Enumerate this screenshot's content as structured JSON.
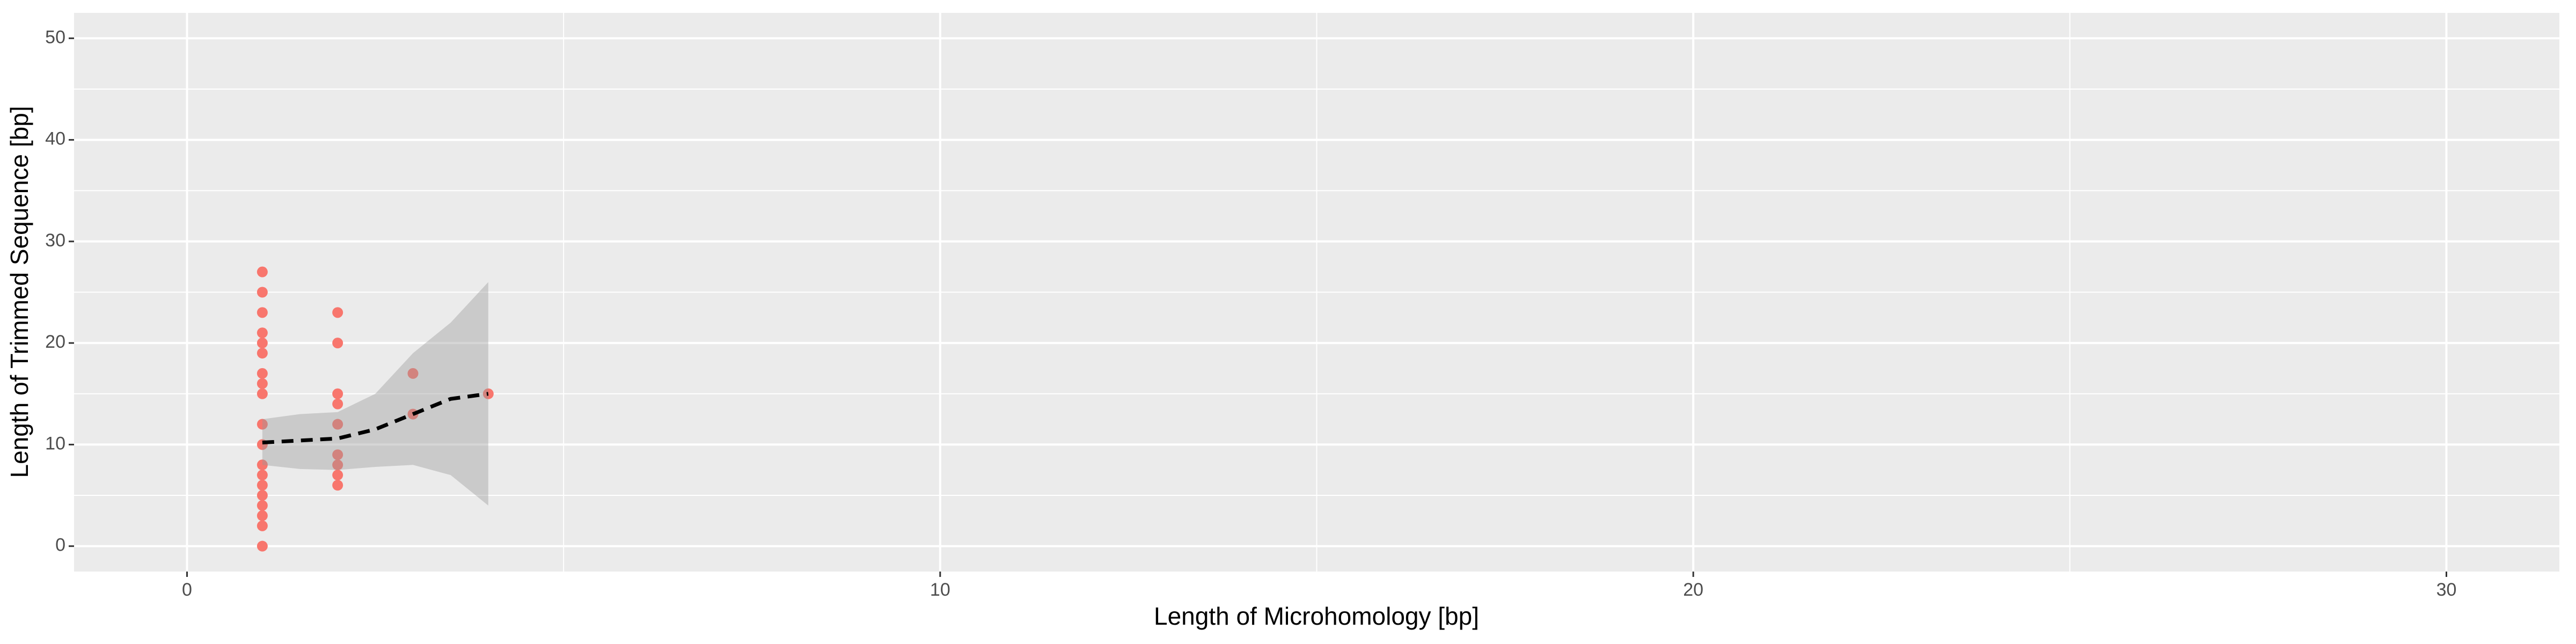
{
  "chart_data": {
    "type": "scatter",
    "x_label": "Length of Microhomology [bp]",
    "y_label": "Length of Trimmed Sequence [bp]",
    "xlim": [
      -1.5,
      31.5
    ],
    "ylim": [
      -2.5,
      52.5
    ],
    "xticks": [
      0,
      10,
      20,
      30
    ],
    "yticks": [
      0,
      10,
      20,
      30,
      40,
      50
    ],
    "xminor": [
      5,
      15,
      25
    ],
    "yminor": [
      5,
      15,
      25,
      35,
      45
    ],
    "grid": true,
    "panel_color": "#ebebeb",
    "series": [
      {
        "color": "#F8766D",
        "x": [
          1,
          1,
          1,
          1,
          1,
          1,
          1,
          1,
          1,
          1,
          1,
          1,
          1,
          1,
          1,
          1,
          1,
          1,
          1,
          2,
          2,
          2,
          2,
          2,
          2,
          2,
          2,
          2,
          3,
          3,
          4
        ],
        "values": [
          27,
          25,
          23,
          21,
          20,
          19,
          17,
          16,
          15,
          12,
          10,
          8,
          7,
          6,
          5,
          4,
          3,
          2,
          0,
          23,
          20,
          15,
          14,
          12,
          9,
          8,
          7,
          6,
          17,
          13,
          15
        ]
      }
    ],
    "smooth": {
      "color": "#000000",
      "band_color": "#999999",
      "x": [
        1,
        1.5,
        2,
        2.5,
        3,
        3.5,
        4
      ],
      "values": [
        10.2,
        10.4,
        10.6,
        11.5,
        13,
        14.5,
        15
      ],
      "lower": [
        8,
        7.6,
        7.5,
        7.8,
        8,
        7,
        4
      ],
      "upper": [
        12.5,
        13,
        13.2,
        15,
        19,
        22,
        26
      ]
    }
  }
}
